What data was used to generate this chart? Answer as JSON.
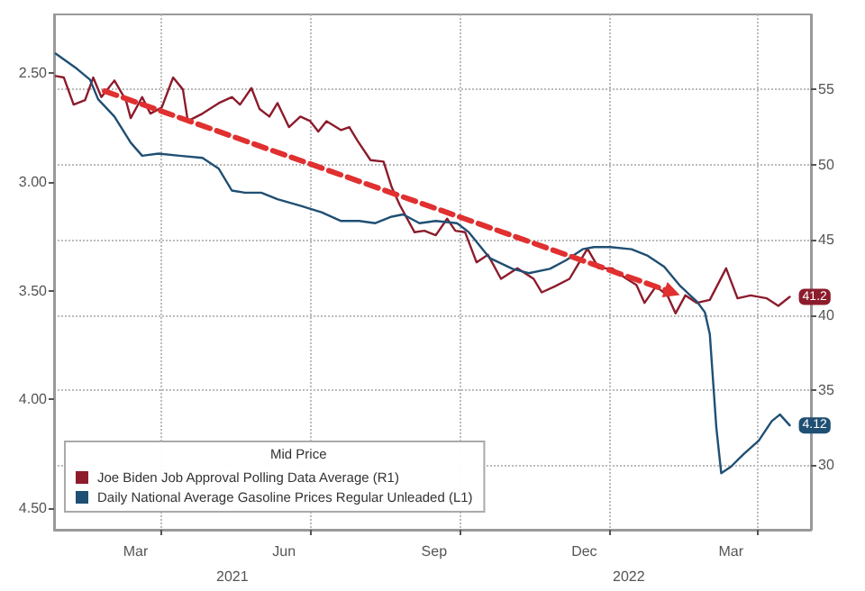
{
  "chart_data": {
    "type": "line",
    "legend_title": "Mid Price",
    "annotations": [
      "2021",
      "2022"
    ],
    "xlim": [
      "2021-01-25",
      "2022-05-04"
    ],
    "xticks": [
      {
        "value": "2021-03-16",
        "label": "Mar"
      },
      {
        "value": "2021-04-01",
        "label": null
      },
      {
        "value": "2021-06-15",
        "label": "Jun"
      },
      {
        "value": "2021-07-01",
        "label": null
      },
      {
        "value": "2021-09-15",
        "label": "Sep"
      },
      {
        "value": "2021-10-01",
        "label": null
      },
      {
        "value": "2021-12-16",
        "label": "Dec"
      },
      {
        "value": "2022-01-01",
        "label": null
      },
      {
        "value": "2022-03-16",
        "label": "Mar"
      },
      {
        "value": "2022-04-01",
        "label": null
      }
    ],
    "ylim": [
      4.6,
      2.23
    ],
    "yticks": [
      {
        "value": 2.5,
        "label": "2.50"
      },
      {
        "value": 3,
        "label": "3.00"
      },
      {
        "value": 3.5,
        "label": "3.50"
      },
      {
        "value": 4,
        "label": "4.00"
      },
      {
        "value": 4.5,
        "label": "4.50"
      }
    ],
    "y2lim": [
      25.7,
      60
    ],
    "y2ticks": [
      30,
      35,
      40,
      45,
      50,
      55
    ],
    "grid": true,
    "legend": "bottom left",
    "line_style": "solid",
    "series": [
      {
        "name": "Joe Biden Job Approval Polling Data Average (R1)",
        "color": "#8c1c2c",
        "axis": "y2",
        "x": [
          "2021-01-26",
          "2021-01-31",
          "2021-02-06",
          "2021-02-13",
          "2021-02-18",
          "2021-02-23",
          "2021-03-03",
          "2021-03-10",
          "2021-03-13",
          "2021-03-20",
          "2021-03-25",
          "2021-04-01",
          "2021-04-08",
          "2021-04-14",
          "2021-04-17",
          "2021-04-26",
          "2021-05-06",
          "2021-05-14",
          "2021-05-19",
          "2021-05-26",
          "2021-05-31",
          "2021-06-06",
          "2021-06-11",
          "2021-06-18",
          "2021-06-25",
          "2021-07-01",
          "2021-07-06",
          "2021-07-11",
          "2021-07-20",
          "2021-07-25",
          "2021-07-30",
          "2021-08-07",
          "2021-08-15",
          "2021-08-20",
          "2021-08-25",
          "2021-09-03",
          "2021-09-09",
          "2021-09-16",
          "2021-09-23",
          "2021-09-28",
          "2021-10-04",
          "2021-10-11",
          "2021-10-18",
          "2021-10-26",
          "2021-11-05",
          "2021-11-15",
          "2021-11-20",
          "2021-11-28",
          "2021-12-07",
          "2021-12-13",
          "2021-12-18",
          "2021-12-25",
          "2022-01-02",
          "2022-01-11",
          "2022-01-17",
          "2022-01-22",
          "2022-01-29",
          "2022-02-05",
          "2022-02-10",
          "2022-02-16",
          "2022-02-23",
          "2022-03-03",
          "2022-03-13",
          "2022-03-20",
          "2022-03-28",
          "2022-04-07",
          "2022-04-14",
          "2022-04-21"
        ],
        "values": [
          55.9,
          55.8,
          54.0,
          54.3,
          55.8,
          54.5,
          55.6,
          54.3,
          53.1,
          54.5,
          53.4,
          53.8,
          55.8,
          55.0,
          52.9,
          53.4,
          54.1,
          54.5,
          54.0,
          55.1,
          53.7,
          53.2,
          54.1,
          52.5,
          53.2,
          52.9,
          52.2,
          52.9,
          52.3,
          52.5,
          51.6,
          50.3,
          50.2,
          48.5,
          47.3,
          45.5,
          45.6,
          45.3,
          46.4,
          45.6,
          45.5,
          43.5,
          44.0,
          42.4,
          43.1,
          42.4,
          41.5,
          41.9,
          42.4,
          43.5,
          44.4,
          43.1,
          43.1,
          42.4,
          42.0,
          40.8,
          41.9,
          41.3,
          40.1,
          41.3,
          40.8,
          41.0,
          43.1,
          41.1,
          41.3,
          41.1,
          40.6,
          41.2
        ],
        "value_labels": [
          null,
          null,
          null,
          null,
          null,
          null,
          null,
          null,
          null,
          null,
          null,
          null,
          null,
          null,
          null,
          null,
          null,
          null,
          null,
          null,
          null,
          null,
          null,
          null,
          null,
          null,
          null,
          null,
          null,
          null,
          null,
          null,
          null,
          null,
          null,
          null,
          null,
          null,
          null,
          null,
          null,
          null,
          null,
          null,
          null,
          null,
          null,
          null,
          null,
          null,
          null,
          null,
          null,
          null,
          null,
          null,
          null,
          null,
          null,
          null,
          null,
          null,
          null,
          null,
          null,
          null,
          null,
          "41.2"
        ]
      },
      {
        "name": "Daily National Average Gasoline Prices Regular Unleaded (L1)",
        "color": "#1f4f73",
        "x": [
          "2021-01-26",
          "2021-02-08",
          "2021-02-16",
          "2021-02-21",
          "2021-03-03",
          "2021-03-13",
          "2021-03-20",
          "2021-03-30",
          "2021-04-12",
          "2021-04-26",
          "2021-05-06",
          "2021-05-14",
          "2021-05-22",
          "2021-06-01",
          "2021-06-11",
          "2021-06-25",
          "2021-07-08",
          "2021-07-20",
          "2021-07-31",
          "2021-08-10",
          "2021-08-20",
          "2021-08-27",
          "2021-09-06",
          "2021-09-16",
          "2021-09-29",
          "2021-10-06",
          "2021-10-19",
          "2021-11-02",
          "2021-11-12",
          "2021-11-25",
          "2021-12-05",
          "2021-12-15",
          "2021-12-22",
          "2022-01-01",
          "2022-01-14",
          "2022-01-24",
          "2022-02-03",
          "2022-02-13",
          "2022-02-23",
          "2022-02-28",
          "2022-03-03",
          "2022-03-07",
          "2022-03-10",
          "2022-03-16",
          "2022-03-24",
          "2022-04-02",
          "2022-04-10",
          "2022-04-15",
          "2022-04-21"
        ],
        "values": [
          2.41,
          2.48,
          2.53,
          2.62,
          2.7,
          2.82,
          2.88,
          2.87,
          2.88,
          2.89,
          2.94,
          3.04,
          3.05,
          3.05,
          3.08,
          3.11,
          3.14,
          3.18,
          3.18,
          3.19,
          3.16,
          3.15,
          3.19,
          3.18,
          3.19,
          3.23,
          3.35,
          3.4,
          3.42,
          3.4,
          3.36,
          3.31,
          3.3,
          3.3,
          3.31,
          3.34,
          3.39,
          3.48,
          3.55,
          3.6,
          3.7,
          4.13,
          4.34,
          4.31,
          4.25,
          4.19,
          4.1,
          4.07,
          4.12
        ],
        "value_labels": [
          null,
          null,
          null,
          null,
          null,
          null,
          null,
          null,
          null,
          null,
          null,
          null,
          null,
          null,
          null,
          null,
          null,
          null,
          null,
          null,
          null,
          null,
          null,
          null,
          null,
          null,
          null,
          null,
          null,
          null,
          null,
          null,
          null,
          null,
          null,
          null,
          null,
          null,
          null,
          null,
          null,
          null,
          null,
          null,
          null,
          null,
          null,
          null,
          "4.12"
        ]
      },
      {
        "type": "line",
        "color": "#e03030",
        "axis": "y2",
        "line_style": "dashed",
        "x": [
          "2021-02-25",
          "2022-02-08"
        ],
        "values": [
          54.9,
          41.5
        ]
      }
    ]
  }
}
